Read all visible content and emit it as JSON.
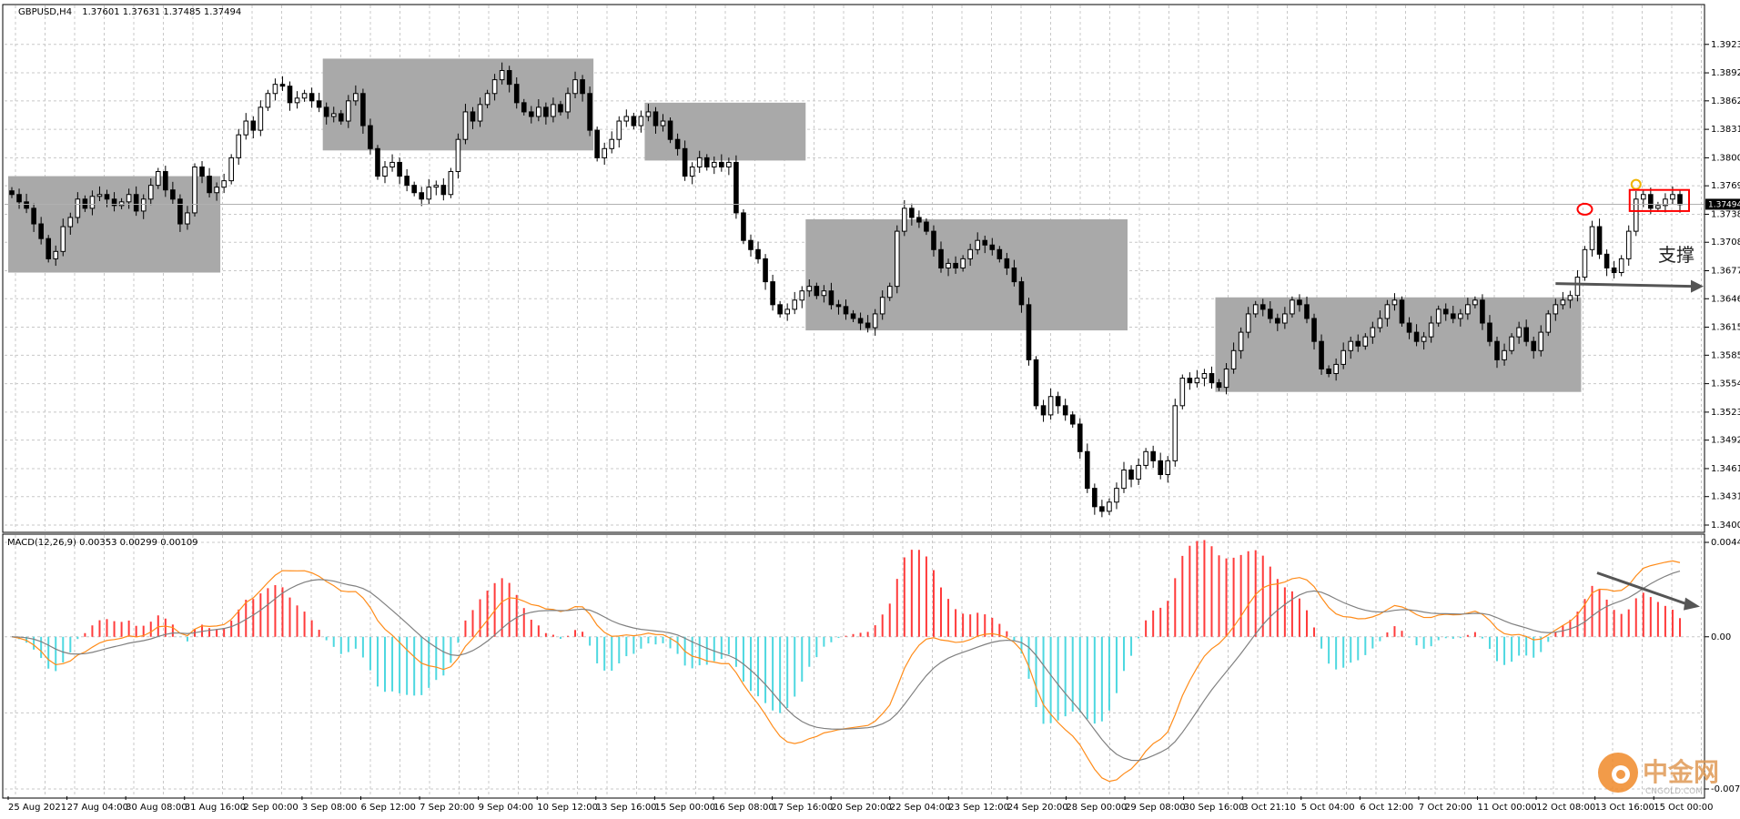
{
  "header": {
    "symbol": "GBPUSD,H4",
    "ohlc": "1.37601 1.37631 1.37485 1.37494"
  },
  "indicator": {
    "label": "MACD(12,26,9) 0.00353 0.00299 0.00109"
  },
  "annotation": {
    "support_label": "支撑"
  },
  "watermark": {
    "brand": "中金网",
    "url": "CNGOLD.COM"
  },
  "colors": {
    "candle": "#000000",
    "zone": "#a9a9a9",
    "hist_pos": "#ff3b3b",
    "hist_neg": "#4ed8e0",
    "macd_line": "#ff8c1a",
    "signal_line": "#808080",
    "marker_red": "#ff0000",
    "marker_gold": "#f0b400",
    "arrow": "#555555"
  },
  "chart_data": [
    {
      "type": "candlestick",
      "y_ticks": [
        "1.39235",
        "1.38925",
        "1.38620",
        "1.38310",
        "1.38000",
        "1.37695",
        "1.37385",
        "1.37080",
        "1.36770",
        "1.36465",
        "1.36155",
        "1.35850",
        "1.35540",
        "1.35230",
        "1.34925",
        "1.34615",
        "1.34310",
        "1.34000"
      ],
      "current_price": "1.37494",
      "x_labels": [
        "25 Aug 2021",
        "27 Aug 04:00",
        "30 Aug 08:00",
        "31 Aug 16:00",
        "2 Sep 00:00",
        "3 Sep 08:00",
        "6 Sep 12:00",
        "7 Sep 20:00",
        "9 Sep 04:00",
        "10 Sep 12:00",
        "13 Sep 16:00",
        "15 Sep 00:00",
        "16 Sep 08:00",
        "17 Sep 16:00",
        "20 Sep 20:00",
        "22 Sep 04:00",
        "23 Sep 12:00",
        "24 Sep 20:00",
        "28 Sep 00:00",
        "29 Sep 08:00",
        "30 Sep 16:00",
        "3 Oct 21:10",
        "5 Oct 04:00",
        "6 Oct 12:00",
        "7 Oct 20:00",
        "11 Oct 00:00",
        "12 Oct 08:00",
        "13 Oct 16:00",
        "15 Oct 00:00"
      ],
      "ylim": [
        1.34,
        1.3954
      ],
      "closes": [
        1.376,
        1.3752,
        1.3745,
        1.3728,
        1.3712,
        1.369,
        1.3698,
        1.3725,
        1.3735,
        1.3755,
        1.3745,
        1.3758,
        1.376,
        1.3755,
        1.3748,
        1.3752,
        1.376,
        1.3742,
        1.3755,
        1.377,
        1.3785,
        1.3765,
        1.3755,
        1.3728,
        1.374,
        1.379,
        1.378,
        1.3762,
        1.3768,
        1.3775,
        1.38,
        1.3825,
        1.384,
        1.383,
        1.3855,
        1.387,
        1.388,
        1.3878,
        1.386,
        1.3865,
        1.387,
        1.3862,
        1.3855,
        1.3845,
        1.3848,
        1.384,
        1.3862,
        1.387,
        1.3835,
        1.381,
        1.378,
        1.379,
        1.3795,
        1.378,
        1.377,
        1.3762,
        1.3755,
        1.3768,
        1.377,
        1.376,
        1.3785,
        1.382,
        1.385,
        1.384,
        1.3858,
        1.387,
        1.3885,
        1.3895,
        1.388,
        1.386,
        1.385,
        1.3845,
        1.3855,
        1.3845,
        1.3858,
        1.385,
        1.387,
        1.3885,
        1.387,
        1.383,
        1.38,
        1.381,
        1.382,
        1.384,
        1.3845,
        1.3835,
        1.3845,
        1.385,
        1.3835,
        1.384,
        1.382,
        1.381,
        1.378,
        1.379,
        1.38,
        1.379,
        1.3795,
        1.379,
        1.3795,
        1.374,
        1.371,
        1.37,
        1.369,
        1.3665,
        1.364,
        1.363,
        1.3635,
        1.3645,
        1.3655,
        1.366,
        1.365,
        1.3655,
        1.364,
        1.3638,
        1.363,
        1.3625,
        1.362,
        1.3615,
        1.363,
        1.3648,
        1.366,
        1.372,
        1.3745,
        1.3735,
        1.373,
        1.372,
        1.37,
        1.368,
        1.3685,
        1.368,
        1.369,
        1.37,
        1.371,
        1.3705,
        1.37,
        1.369,
        1.368,
        1.3665,
        1.364,
        1.358,
        1.353,
        1.352,
        1.354,
        1.353,
        1.352,
        1.351,
        1.348,
        1.344,
        1.342,
        1.3415,
        1.3425,
        1.344,
        1.346,
        1.345,
        1.3465,
        1.348,
        1.347,
        1.3455,
        1.347,
        1.353,
        1.356,
        1.3555,
        1.356,
        1.3565,
        1.3555,
        1.355,
        1.357,
        1.359,
        1.361,
        1.363,
        1.364,
        1.3635,
        1.3625,
        1.362,
        1.363,
        1.3645,
        1.364,
        1.3625,
        1.36,
        1.357,
        1.3565,
        1.3575,
        1.359,
        1.36,
        1.3595,
        1.3605,
        1.3615,
        1.3625,
        1.364,
        1.3645,
        1.362,
        1.361,
        1.36,
        1.3605,
        1.362,
        1.3635,
        1.363,
        1.3625,
        1.363,
        1.364,
        1.3645,
        1.362,
        1.36,
        1.358,
        1.359,
        1.3605,
        1.3615,
        1.36,
        1.359,
        1.361,
        1.363,
        1.364,
        1.3645,
        1.365,
        1.367,
        1.37,
        1.3725,
        1.3695,
        1.368,
        1.3675,
        1.369,
        1.372,
        1.3755,
        1.376,
        1.3745,
        1.3748,
        1.3755,
        1.376,
        1.3749
      ]
    },
    {
      "type": "macd",
      "params": "12,26,9",
      "macd": 0.00353,
      "signal": 0.00299,
      "histogram": 0.00109,
      "y_ticks": [
        "0.00443",
        "0.00",
        "-0.00714"
      ],
      "ylim": [
        -0.00714,
        0.00443
      ]
    }
  ]
}
